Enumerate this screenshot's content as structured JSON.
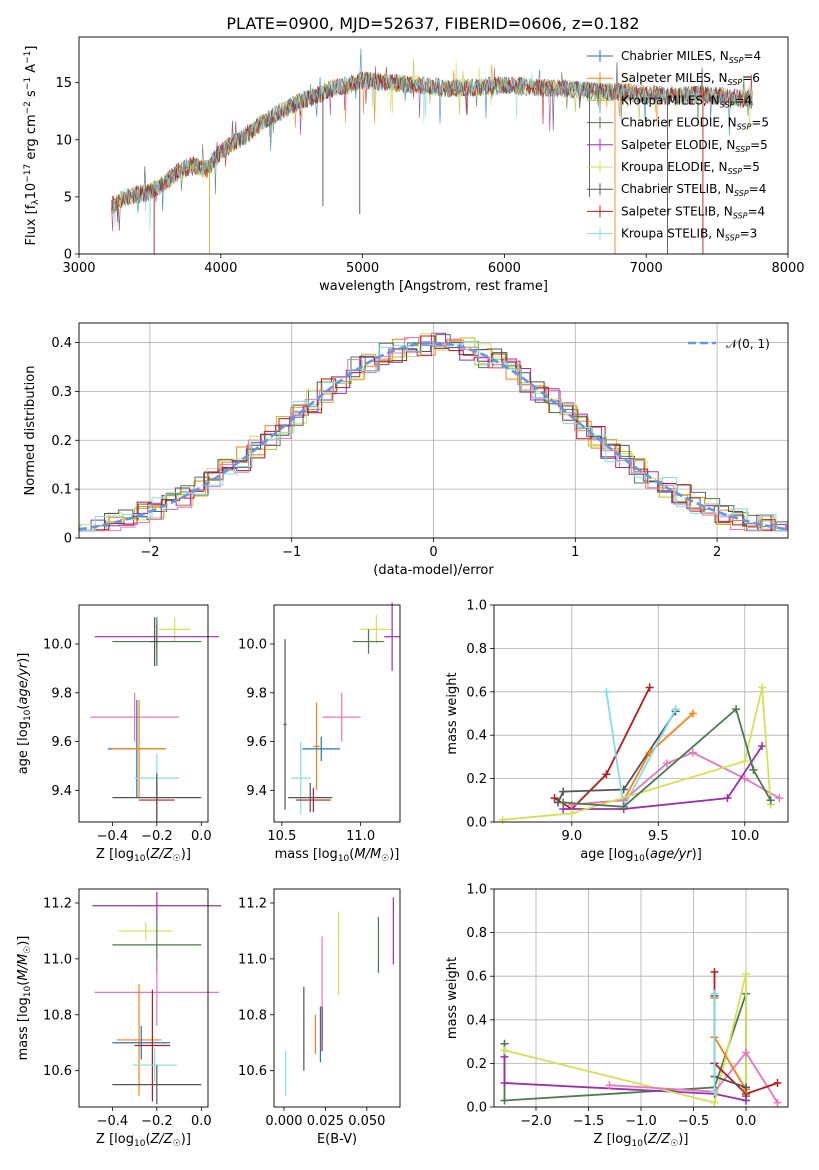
{
  "figure": {
    "title": "PLATE=0900, MJD=52637, FIBERID=0606, z=0.182"
  },
  "chart_data": [
    {
      "id": "spectrum",
      "type": "line",
      "title": "PLATE=0900, MJD=52637, FIBERID=0606, z=0.182",
      "xlabel": "wavelength [Angstrom, rest frame]",
      "ylabel": "Flux [f_λ 10^-17 erg cm^-2 s^-1 A^-1]",
      "xlim": [
        3000,
        8000
      ],
      "ylim": [
        0,
        19
      ],
      "xticks": [
        3000,
        4000,
        5000,
        6000,
        7000,
        8000
      ],
      "yticks": [
        0,
        5,
        10,
        15
      ],
      "grid": false,
      "legend_position": "top-right",
      "spectrum_profile": {
        "x": [
          3230,
          3300,
          3400,
          3500,
          3600,
          3700,
          3800,
          3900,
          4000,
          4100,
          4200,
          4300,
          4400,
          4500,
          4600,
          4700,
          4800,
          4900,
          5000,
          5200,
          5400,
          5600,
          5800,
          6000,
          6200,
          6400,
          6600,
          6800,
          7000,
          7200,
          7400,
          7600,
          7750
        ],
        "y": [
          4.2,
          4.8,
          5.2,
          5.4,
          6.2,
          7.2,
          7.8,
          7.4,
          9.0,
          9.8,
          10.6,
          11.6,
          12.3,
          13.0,
          13.6,
          14.0,
          14.6,
          14.8,
          15.2,
          15.0,
          14.8,
          14.5,
          14.6,
          14.8,
          14.6,
          14.5,
          14.3,
          14.2,
          14.0,
          13.8,
          14.0,
          13.7,
          13.5
        ]
      },
      "series": [
        {
          "name": "Chabrier MILES, N_SSP=4",
          "color": "#1f77b4"
        },
        {
          "name": "Salpeter MILES, N_SSP=6",
          "color": "#ff7f0e"
        },
        {
          "name": "Kroupa MILES, N_SSP=4",
          "color": "#bcbd22"
        },
        {
          "name": "Chabrier ELODIE, N_SSP=5",
          "color": "#4c7a4c"
        },
        {
          "name": "Salpeter ELODIE, N_SSP=5",
          "color": "#9b30ad"
        },
        {
          "name": "Kroupa ELODIE, N_SSP=5",
          "color": "#d4e157"
        },
        {
          "name": "Chabrier STELIB, N_SSP=4",
          "color": "#555555"
        },
        {
          "name": "Salpeter STELIB, N_SSP=4",
          "color": "#b71c1c"
        },
        {
          "name": "Kroupa STELIB, N_SSP=3",
          "color": "#80deea"
        }
      ]
    },
    {
      "id": "residuals",
      "type": "line",
      "xlabel": "(data-model)/error",
      "ylabel": "Normed distribution",
      "xlim": [
        -2.5,
        2.5
      ],
      "ylim": [
        0,
        0.44
      ],
      "xticks": [
        -2,
        -1,
        0,
        1,
        2
      ],
      "yticks": [
        0.0,
        0.1,
        0.2,
        0.3,
        0.4
      ],
      "grid": true,
      "legend_position": "top-right",
      "legend": "𝒩(0, 1)",
      "reference_color": "#6495ed",
      "hist_colors": [
        "#ff7f0e",
        "#bcbd22",
        "#4c7a4c",
        "#9b30ad",
        "#d4e157",
        "#555555",
        "#b71c1c",
        "#e377c2",
        "#80deea"
      ],
      "hist_offsets": [
        0.012,
        -0.008,
        0.018,
        -0.015,
        0.005,
        -0.02,
        0.01,
        -0.005,
        0.015
      ]
    },
    {
      "id": "age-vs-Z",
      "type": "scatter",
      "xlabel": "Z [log10(Z/Z☉)]",
      "ylabel": "age [log10(age/yr)]",
      "xlim": [
        -0.55,
        0.03
      ],
      "ylim": [
        9.27,
        10.16
      ],
      "xticks": [
        -0.4,
        -0.2,
        0.0
      ],
      "xticklabels": [
        "−0.4",
        "−0.2",
        "0.0"
      ],
      "yticks": [
        9.4,
        9.6,
        9.8,
        10.0
      ],
      "yticklabels": [
        "9.4",
        "9.6",
        "9.8",
        "10.0"
      ],
      "grid": false,
      "points": [
        {
          "x": -0.12,
          "y": 10.06,
          "xerr": 0.07,
          "yerr": 0.05,
          "color": "#d4e157"
        },
        {
          "x": -0.2,
          "y": 10.03,
          "xerr": 0.28,
          "yerr": 0.05,
          "color": "#9b30ad"
        },
        {
          "x": -0.2,
          "y": 10.01,
          "xerr": 0.2,
          "yerr": 0.1,
          "color": "#4c7a4c"
        },
        {
          "x": -0.21,
          "y": 10.01,
          "xerr": 0.02,
          "yerr": 0.1,
          "color": "#555555"
        },
        {
          "x": -0.3,
          "y": 9.7,
          "xerr": 0.2,
          "yerr": 0.1,
          "color": "#e377c2"
        },
        {
          "x": -0.29,
          "y": 9.57,
          "xerr": 0.13,
          "yerr": 0.2,
          "color": "#1f77b4"
        },
        {
          "x": -0.28,
          "y": 9.57,
          "xerr": 0.12,
          "yerr": 0.2,
          "color": "#ff7f0e"
        },
        {
          "x": -0.2,
          "y": 9.45,
          "xerr": 0.1,
          "yerr": 0.1,
          "color": "#80deea"
        },
        {
          "x": -0.2,
          "y": 9.36,
          "xerr": 0.08,
          "yerr": 0.08,
          "color": "#b71c1c"
        },
        {
          "x": -0.2,
          "y": 9.37,
          "xerr": 0.2,
          "yerr": 0.1,
          "color": "#555555"
        }
      ]
    },
    {
      "id": "age-vs-mass",
      "type": "scatter",
      "xlabel": "mass [log10(M/M☉)]",
      "ylabel": "",
      "xlim": [
        10.45,
        11.25
      ],
      "ylim": [
        9.27,
        10.16
      ],
      "xticks": [
        10.5,
        11.0
      ],
      "xticklabels": [
        "10.5",
        "11.0"
      ],
      "yticks": [
        9.4,
        9.6,
        9.8,
        10.0
      ],
      "yticklabels": [
        "9.4",
        "9.6",
        "9.8",
        "10.0"
      ],
      "grid": false,
      "points": [
        {
          "x": 11.1,
          "y": 10.06,
          "xerr": 0.1,
          "yerr": 0.06,
          "color": "#d4e157"
        },
        {
          "x": 11.2,
          "y": 10.03,
          "xerr": 0.05,
          "yerr": 0.14,
          "color": "#9b30ad"
        },
        {
          "x": 11.05,
          "y": 10.01,
          "xerr": 0.1,
          "yerr": 0.05,
          "color": "#4c7a4c"
        },
        {
          "x": 10.52,
          "y": 9.67,
          "xerr": 0.01,
          "yerr": 0.35,
          "color": "#555555"
        },
        {
          "x": 10.88,
          "y": 9.7,
          "xerr": 0.12,
          "yerr": 0.1,
          "color": "#e377c2"
        },
        {
          "x": 10.72,
          "y": 9.58,
          "xerr": 0.02,
          "yerr": 0.18,
          "color": "#ff7f0e"
        },
        {
          "x": 10.75,
          "y": 9.57,
          "xerr": 0.12,
          "yerr": 0.05,
          "color": "#1f77b4"
        },
        {
          "x": 10.62,
          "y": 9.45,
          "xerr": 0.06,
          "yerr": 0.15,
          "color": "#80deea"
        },
        {
          "x": 10.7,
          "y": 9.36,
          "xerr": 0.11,
          "yerr": 0.05,
          "color": "#b71c1c"
        },
        {
          "x": 10.68,
          "y": 9.37,
          "xerr": 0.14,
          "yerr": 0.06,
          "color": "#555555"
        }
      ]
    },
    {
      "id": "weight-vs-age",
      "type": "line",
      "xlabel": "age [log10(age/yr)]",
      "ylabel": "mass weight",
      "xlim": [
        8.55,
        10.25
      ],
      "ylim": [
        0,
        1.0
      ],
      "xticks": [
        9.0,
        9.5,
        10.0
      ],
      "xticklabels": [
        "9.0",
        "9.5",
        "10.0"
      ],
      "yticks": [
        0.0,
        0.2,
        0.4,
        0.6,
        0.8,
        1.0
      ],
      "yticklabels": [
        "0.0",
        "0.2",
        "0.4",
        "0.6",
        "0.8",
        "1.0"
      ],
      "grid": true,
      "series": [
        {
          "color": "#b71c1c",
          "x": [
            8.9,
            9.0,
            9.2,
            9.45
          ],
          "y": [
            0.11,
            0.06,
            0.22,
            0.62
          ]
        },
        {
          "color": "#555555",
          "x": [
            8.92,
            8.95,
            9.3,
            9.6
          ],
          "y": [
            0.09,
            0.14,
            0.15,
            0.51
          ]
        },
        {
          "color": "#ff7f0e",
          "x": [
            9.0,
            9.3,
            9.45,
            9.7
          ],
          "y": [
            0.08,
            0.1,
            0.32,
            0.5
          ]
        },
        {
          "color": "#80deea",
          "x": [
            9.2,
            9.3,
            9.6
          ],
          "y": [
            0.6,
            0.07,
            0.52
          ]
        },
        {
          "color": "#e377c2",
          "x": [
            9.0,
            9.3,
            9.55,
            9.7,
            10.0,
            10.2
          ],
          "y": [
            0.08,
            0.1,
            0.27,
            0.32,
            0.2,
            0.11
          ]
        },
        {
          "color": "#9b30ad",
          "x": [
            8.95,
            9.3,
            9.9,
            10.1
          ],
          "y": [
            0.06,
            0.06,
            0.11,
            0.35
          ]
        },
        {
          "color": "#d4e157",
          "x": [
            8.6,
            9.0,
            10.0,
            10.1,
            10.15
          ],
          "y": [
            0.01,
            0.04,
            0.28,
            0.62,
            0.08
          ]
        },
        {
          "color": "#4c7a4c",
          "x": [
            8.95,
            9.3,
            9.95,
            10.05,
            10.15
          ],
          "y": [
            0.09,
            0.07,
            0.52,
            0.24,
            0.1
          ]
        }
      ]
    },
    {
      "id": "mass-vs-Z",
      "type": "scatter",
      "xlabel": "Z [log10(Z/Z☉)]",
      "ylabel": "mass [log10(M/M☉)]",
      "xlim": [
        -0.55,
        0.03
      ],
      "ylim": [
        10.47,
        11.25
      ],
      "xticks": [
        -0.4,
        -0.2,
        0.0
      ],
      "xticklabels": [
        "−0.4",
        "−0.2",
        "0.0"
      ],
      "yticks": [
        10.6,
        10.8,
        11.0,
        11.2
      ],
      "yticklabels": [
        "10.6",
        "10.8",
        "11.0",
        "11.2"
      ],
      "grid": false,
      "points": [
        {
          "x": -0.2,
          "y": 11.19,
          "xerr": 0.29,
          "yerr": 0.05,
          "color": "#9b30ad"
        },
        {
          "x": -0.25,
          "y": 11.1,
          "xerr": 0.12,
          "yerr": 0.03,
          "color": "#d4e157"
        },
        {
          "x": -0.2,
          "y": 11.05,
          "xerr": 0.2,
          "yerr": 0.1,
          "color": "#4c7a4c"
        },
        {
          "x": -0.2,
          "y": 10.88,
          "xerr": 0.28,
          "yerr": 0.12,
          "color": "#e377c2"
        },
        {
          "x": -0.28,
          "y": 10.71,
          "xerr": 0.1,
          "yerr": 0.2,
          "color": "#ff7f0e"
        },
        {
          "x": -0.27,
          "y": 10.7,
          "xerr": 0.13,
          "yerr": 0.06,
          "color": "#1f77b4"
        },
        {
          "x": -0.22,
          "y": 10.69,
          "xerr": 0.08,
          "yerr": 0.2,
          "color": "#b71c1c"
        },
        {
          "x": -0.21,
          "y": 10.62,
          "xerr": 0.1,
          "yerr": 0.06,
          "color": "#80deea"
        },
        {
          "x": -0.2,
          "y": 10.55,
          "xerr": 0.2,
          "yerr": 0.07,
          "color": "#555555"
        }
      ]
    },
    {
      "id": "mass-vs-ebv",
      "type": "scatter",
      "xlabel": "E(B-V)",
      "ylabel": "",
      "xlim": [
        -0.006,
        0.07
      ],
      "ylim": [
        10.47,
        11.25
      ],
      "xticks": [
        0.0,
        0.025,
        0.05
      ],
      "xticklabels": [
        "0.000",
        "0.025",
        "0.050"
      ],
      "yticks": [
        10.6,
        10.8,
        11.0,
        11.2
      ],
      "yticklabels": [
        "10.6",
        "10.8",
        "11.0",
        "11.2"
      ],
      "grid": false,
      "points": [
        {
          "x": 0.001,
          "y": 10.59,
          "yerr": 0.08,
          "color": "#80deea"
        },
        {
          "x": 0.012,
          "y": 10.75,
          "yerr": 0.15,
          "color": "#555555"
        },
        {
          "x": 0.019,
          "y": 10.73,
          "yerr": 0.07,
          "color": "#ff7f0e"
        },
        {
          "x": 0.022,
          "y": 10.73,
          "yerr": 0.1,
          "color": "#1f77b4"
        },
        {
          "x": 0.023,
          "y": 10.9,
          "yerr": 0.18,
          "color": "#e377c2"
        },
        {
          "x": 0.023,
          "y": 10.75,
          "yerr": 0.08,
          "color": "#b71c1c"
        },
        {
          "x": 0.033,
          "y": 11.02,
          "yerr": 0.15,
          "color": "#d4e157"
        },
        {
          "x": 0.057,
          "y": 11.05,
          "yerr": 0.1,
          "color": "#4c7a4c"
        },
        {
          "x": 0.066,
          "y": 11.1,
          "yerr": 0.12,
          "color": "#9b30ad"
        }
      ]
    },
    {
      "id": "weight-vs-Z",
      "type": "line",
      "xlabel": "Z [log10(Z/Z☉)]",
      "ylabel": "mass weight",
      "xlim": [
        -2.4,
        0.4
      ],
      "ylim": [
        0,
        1.0
      ],
      "xticks": [
        -2.0,
        -1.5,
        -1.0,
        -0.5,
        0.0
      ],
      "xticklabels": [
        "−2.0",
        "−1.5",
        "−1.0",
        "−0.5",
        "0.0"
      ],
      "yticks": [
        0.0,
        0.2,
        0.4,
        0.6,
        0.8,
        1.0
      ],
      "yticklabels": [
        "0.0",
        "0.2",
        "0.4",
        "0.6",
        "0.8",
        "1.0"
      ],
      "grid": true,
      "series": [
        {
          "color": "#4c7a4c",
          "x": [
            -2.3,
            -2.3,
            -0.3,
            0.0,
            0.0
          ],
          "y": [
            0.29,
            0.03,
            0.09,
            0.52,
            0.05
          ]
        },
        {
          "color": "#9b30ad",
          "x": [
            -2.3,
            -2.3,
            -0.3,
            0.0
          ],
          "y": [
            0.23,
            0.11,
            0.06,
            0.03
          ]
        },
        {
          "color": "#d4e157",
          "x": [
            -2.3,
            -0.3,
            0.0,
            0.0
          ],
          "y": [
            0.26,
            0.02,
            0.61,
            0.09
          ]
        },
        {
          "color": "#e377c2",
          "x": [
            -1.3,
            -0.3,
            0.0,
            0.3
          ],
          "y": [
            0.1,
            0.07,
            0.25,
            0.02
          ]
        },
        {
          "color": "#b71c1c",
          "x": [
            -0.3,
            -0.3,
            0.0,
            0.3
          ],
          "y": [
            0.62,
            0.2,
            0.06,
            0.11
          ]
        },
        {
          "color": "#ff7f0e",
          "x": [
            -0.3,
            -0.3,
            0.0
          ],
          "y": [
            0.5,
            0.32,
            0.08
          ]
        },
        {
          "color": "#555555",
          "x": [
            -0.3,
            -0.3,
            0.0
          ],
          "y": [
            0.51,
            0.14,
            0.09
          ]
        },
        {
          "color": "#80deea",
          "x": [
            -0.3,
            -0.3
          ],
          "y": [
            0.52,
            0.07
          ]
        }
      ]
    }
  ]
}
